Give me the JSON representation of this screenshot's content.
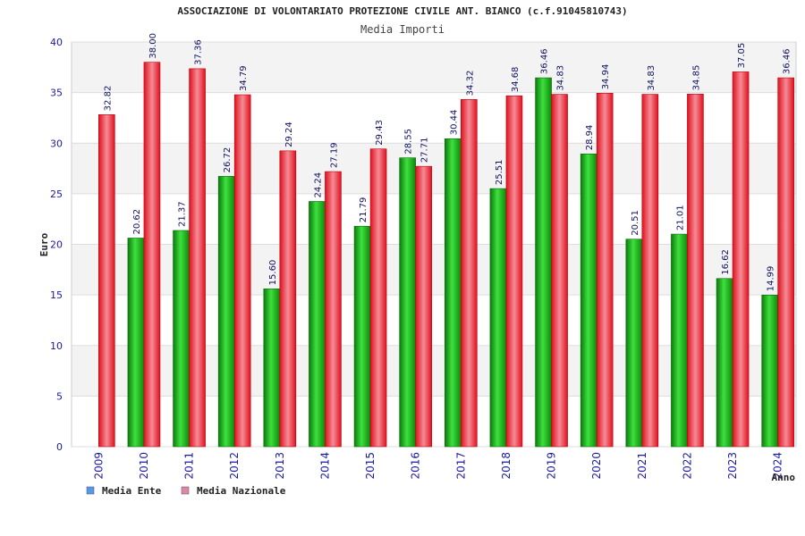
{
  "chart_data": {
    "type": "bar",
    "title": "ASSOCIAZIONE DI VOLONTARIATO PROTEZIONE CIVILE ANT. BIANCO (c.f.91045810743)",
    "subtitle": "Media Importi",
    "xlabel": "Anno",
    "ylabel": "Euro",
    "ylim": [
      0,
      40
    ],
    "yticks": [
      "0",
      "5",
      "10",
      "15",
      "20",
      "25",
      "30",
      "35",
      "40"
    ],
    "grid": true,
    "legend_position": "bottom-left",
    "categories": [
      "2009",
      "2010",
      "2011",
      "2012",
      "2013",
      "2014",
      "2015",
      "2016",
      "2017",
      "2018",
      "2019",
      "2020",
      "2021",
      "2022",
      "2023",
      "2024"
    ],
    "series": [
      {
        "name": "Media Ente",
        "color": "#22bb22",
        "legend_color": "#5599ee",
        "values": [
          null,
          20.62,
          21.37,
          26.72,
          15.6,
          24.24,
          21.79,
          28.55,
          30.44,
          25.51,
          36.46,
          28.94,
          20.51,
          21.01,
          16.62,
          14.99
        ],
        "labels": [
          "",
          "20.62",
          "21.37",
          "26.72",
          "15.60",
          "24.24",
          "21.79",
          "28.55",
          "30.44",
          "25.51",
          "36.46",
          "28.94",
          "20.51",
          "21.01",
          "16.62",
          "14.99"
        ]
      },
      {
        "name": "Media Nazionale",
        "color": "#ee2233",
        "legend_color": "#dd88aa",
        "values": [
          32.82,
          38.0,
          37.36,
          34.79,
          29.24,
          27.19,
          29.43,
          27.71,
          34.32,
          34.68,
          34.83,
          34.94,
          34.83,
          34.85,
          37.05,
          36.46
        ],
        "labels": [
          "32.82",
          "38.00",
          "37.36",
          "34.79",
          "29.24",
          "27.19",
          "29.43",
          "27.71",
          "34.32",
          "34.68",
          "34.83",
          "34.94",
          "34.83",
          "34.85",
          "37.05",
          "36.46"
        ]
      }
    ]
  }
}
